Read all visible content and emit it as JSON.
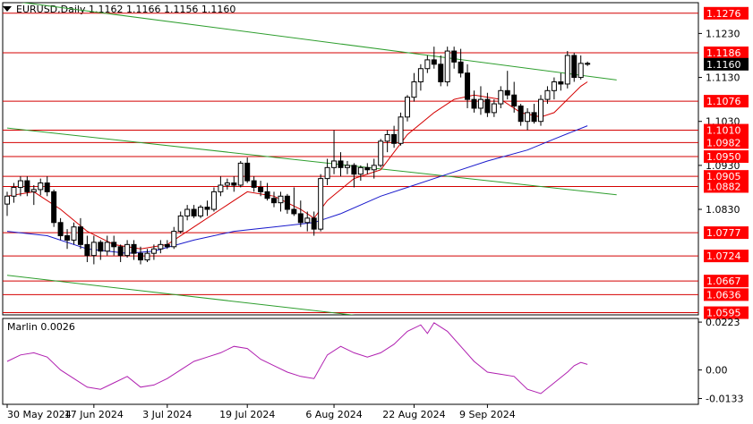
{
  "header": {
    "symbol_line": "EURUSD,Daily  1.1162 1.1166 1.1156 1.1160"
  },
  "indicator": {
    "label": "Marlin 0.0026"
  },
  "colors": {
    "bg": "#ffffff",
    "resistance": "#d40000",
    "trend": "#2e9e2e",
    "ma_fast": "#d40000",
    "ma_slow": "#1a1acc",
    "candle": "#000000",
    "oscillator": "#b020b0",
    "price_tag_bg": "#ff0000",
    "current_tag_bg": "#000000"
  },
  "chart_data": {
    "type": "candlestick",
    "symbol": "EURUSD",
    "timeframe": "Daily",
    "ohlc_last": {
      "open": 1.1162,
      "high": 1.1166,
      "low": 1.1156,
      "close": 1.116
    },
    "ylim": [
      1.059,
      1.13
    ],
    "y_ticks": [
      1.123,
      1.113,
      1.103,
      1.093,
      1.083
    ],
    "x_tick_labels": [
      "30 May 2024",
      "17 Jun 2024",
      "3 Jul 2024",
      "19 Jul 2024",
      "6 Aug 2024",
      "22 Aug 2024",
      "9 Sep 2024"
    ],
    "x_tick_index": [
      0,
      13,
      24,
      36,
      49,
      61,
      72
    ],
    "levels": [
      1.1276,
      1.1186,
      1.1076,
      1.101,
      1.0982,
      1.095,
      1.0905,
      1.0882,
      1.0777,
      1.0724,
      1.0667,
      1.0636,
      1.0595
    ],
    "current_price": 1.116,
    "trend_lines": [
      {
        "p1": [
          0,
          1.1305
        ],
        "p2": [
          86,
          1.1135
        ]
      },
      {
        "p1": [
          0,
          1.1015
        ],
        "p2": [
          86,
          1.0872
        ]
      },
      {
        "p1": [
          0,
          1.068
        ],
        "p2": [
          86,
          1.053
        ]
      }
    ],
    "candles": [
      [
        1.0842,
        1.087,
        1.0815,
        1.086
      ],
      [
        1.086,
        1.089,
        1.0845,
        1.088
      ],
      [
        1.088,
        1.0905,
        1.086,
        1.0895
      ],
      [
        1.0895,
        1.0905,
        1.086,
        1.087
      ],
      [
        1.087,
        1.0885,
        1.084,
        1.0875
      ],
      [
        1.0875,
        1.09,
        1.0862,
        1.089
      ],
      [
        1.089,
        1.0905,
        1.086,
        1.087
      ],
      [
        1.087,
        1.0875,
        1.079,
        1.08
      ],
      [
        1.08,
        1.081,
        1.076,
        1.077
      ],
      [
        1.077,
        1.0785,
        1.074,
        1.076
      ],
      [
        1.076,
        1.08,
        1.075,
        1.079
      ],
      [
        1.079,
        1.081,
        1.074,
        1.075
      ],
      [
        1.075,
        1.077,
        1.071,
        1.0725
      ],
      [
        1.0725,
        1.077,
        1.0705,
        1.0755
      ],
      [
        1.0755,
        1.076,
        1.0715,
        1.0735
      ],
      [
        1.0735,
        1.077,
        1.0725,
        1.0755
      ],
      [
        1.0755,
        1.077,
        1.0725,
        1.0745
      ],
      [
        1.0745,
        1.075,
        1.071,
        1.0725
      ],
      [
        1.0725,
        1.076,
        1.072,
        1.075
      ],
      [
        1.075,
        1.076,
        1.0715,
        1.073
      ],
      [
        1.073,
        1.0745,
        1.0705,
        1.0715
      ],
      [
        1.0715,
        1.074,
        1.071,
        1.073
      ],
      [
        1.073,
        1.075,
        1.0715,
        1.074
      ],
      [
        1.074,
        1.076,
        1.073,
        1.075
      ],
      [
        1.075,
        1.076,
        1.074,
        1.0745
      ],
      [
        1.0745,
        1.079,
        1.074,
        1.078
      ],
      [
        1.078,
        1.0825,
        1.0775,
        1.0815
      ],
      [
        1.0815,
        1.084,
        1.0805,
        1.083
      ],
      [
        1.083,
        1.084,
        1.081,
        1.0815
      ],
      [
        1.0815,
        1.084,
        1.081,
        1.0835
      ],
      [
        1.0835,
        1.085,
        1.0815,
        1.083
      ],
      [
        1.083,
        1.088,
        1.0825,
        1.087
      ],
      [
        1.087,
        1.0905,
        1.086,
        1.0885
      ],
      [
        1.0885,
        1.09,
        1.0875,
        1.089
      ],
      [
        1.089,
        1.0905,
        1.087,
        1.0885
      ],
      [
        1.0885,
        1.094,
        1.088,
        1.0935
      ],
      [
        1.0935,
        1.0948,
        1.089,
        1.0895
      ],
      [
        1.0895,
        1.0905,
        1.087,
        1.088
      ],
      [
        1.088,
        1.0895,
        1.086,
        1.087
      ],
      [
        1.087,
        1.089,
        1.085,
        1.0855
      ],
      [
        1.0855,
        1.087,
        1.0835,
        1.0845
      ],
      [
        1.0845,
        1.087,
        1.0825,
        1.086
      ],
      [
        1.086,
        1.0865,
        1.082,
        1.083
      ],
      [
        1.083,
        1.088,
        1.0815,
        1.082
      ],
      [
        1.082,
        1.085,
        1.079,
        1.08
      ],
      [
        1.08,
        1.0825,
        1.078,
        1.081
      ],
      [
        1.081,
        1.0825,
        1.077,
        1.0785
      ],
      [
        1.0785,
        1.091,
        1.078,
        1.09
      ],
      [
        1.09,
        1.0945,
        1.0885,
        1.0925
      ],
      [
        1.0925,
        1.101,
        1.091,
        1.094
      ],
      [
        1.094,
        1.096,
        1.0905,
        1.0925
      ],
      [
        1.0925,
        1.094,
        1.091,
        1.093
      ],
      [
        1.093,
        1.0935,
        1.088,
        1.091
      ],
      [
        1.091,
        1.093,
        1.0895,
        1.0925
      ],
      [
        1.0925,
        1.0935,
        1.091,
        1.092
      ],
      [
        1.092,
        1.0945,
        1.09,
        1.093
      ],
      [
        1.093,
        1.099,
        1.0925,
        1.0985
      ],
      [
        1.0985,
        1.101,
        1.096,
        1.1
      ],
      [
        1.1,
        1.102,
        1.097,
        1.098
      ],
      [
        1.098,
        1.105,
        1.0975,
        1.104
      ],
      [
        1.104,
        1.109,
        1.103,
        1.1085
      ],
      [
        1.1085,
        1.114,
        1.1075,
        1.112
      ],
      [
        1.112,
        1.116,
        1.11,
        1.115
      ],
      [
        1.115,
        1.118,
        1.114,
        1.117
      ],
      [
        1.117,
        1.12,
        1.115,
        1.116
      ],
      [
        1.116,
        1.118,
        1.111,
        1.112
      ],
      [
        1.112,
        1.12,
        1.111,
        1.119
      ],
      [
        1.119,
        1.12,
        1.115,
        1.1165
      ],
      [
        1.1165,
        1.1195,
        1.113,
        1.114
      ],
      [
        1.114,
        1.116,
        1.106,
        1.108
      ],
      [
        1.108,
        1.11,
        1.105,
        1.106
      ],
      [
        1.106,
        1.111,
        1.1045,
        1.108
      ],
      [
        1.108,
        1.1095,
        1.104,
        1.105
      ],
      [
        1.105,
        1.108,
        1.104,
        1.107
      ],
      [
        1.107,
        1.111,
        1.106,
        1.11
      ],
      [
        1.11,
        1.1145,
        1.108,
        1.109
      ],
      [
        1.109,
        1.112,
        1.105,
        1.1065
      ],
      [
        1.1065,
        1.107,
        1.102,
        1.103
      ],
      [
        1.103,
        1.106,
        1.101,
        1.105
      ],
      [
        1.105,
        1.107,
        1.1025,
        1.103
      ],
      [
        1.103,
        1.109,
        1.102,
        1.108
      ],
      [
        1.108,
        1.111,
        1.107,
        1.11
      ],
      [
        1.11,
        1.113,
        1.108,
        1.112
      ],
      [
        1.112,
        1.114,
        1.11,
        1.1115
      ],
      [
        1.1115,
        1.119,
        1.1105,
        1.118
      ],
      [
        1.118,
        1.1186,
        1.112,
        1.113
      ],
      [
        1.113,
        1.118,
        1.1125,
        1.1162
      ],
      [
        1.1162,
        1.1166,
        1.1156,
        1.116
      ]
    ],
    "ma_fast": [
      [
        0,
        1.086
      ],
      [
        4,
        1.087
      ],
      [
        8,
        1.083
      ],
      [
        12,
        1.078
      ],
      [
        16,
        1.075
      ],
      [
        20,
        1.074
      ],
      [
        24,
        1.075
      ],
      [
        28,
        1.079
      ],
      [
        32,
        1.083
      ],
      [
        34,
        1.085
      ],
      [
        36,
        1.087
      ],
      [
        40,
        1.086
      ],
      [
        44,
        1.083
      ],
      [
        46,
        1.081
      ],
      [
        48,
        1.085
      ],
      [
        52,
        1.09
      ],
      [
        56,
        1.092
      ],
      [
        60,
        1.1
      ],
      [
        64,
        1.105
      ],
      [
        67,
        1.108
      ],
      [
        70,
        1.109
      ],
      [
        74,
        1.108
      ],
      [
        77,
        1.105
      ],
      [
        80,
        1.104
      ],
      [
        82,
        1.105
      ],
      [
        86,
        1.111
      ],
      [
        87,
        1.112
      ]
    ],
    "ma_slow": [
      [
        0,
        1.078
      ],
      [
        6,
        1.077
      ],
      [
        12,
        1.074
      ],
      [
        18,
        1.073
      ],
      [
        22,
        1.0735
      ],
      [
        28,
        1.076
      ],
      [
        34,
        1.078
      ],
      [
        40,
        1.079
      ],
      [
        46,
        1.08
      ],
      [
        50,
        1.082
      ],
      [
        56,
        1.086
      ],
      [
        60,
        1.088
      ],
      [
        66,
        1.091
      ],
      [
        72,
        1.094
      ],
      [
        78,
        1.0965
      ],
      [
        82,
        1.099
      ],
      [
        87,
        1.102
      ]
    ],
    "oscillator": {
      "name": "Marlin",
      "value": 0.0026,
      "ylim": [
        -0.016,
        0.024
      ],
      "y_ticks": [
        0.0223,
        0.0,
        -0.0133
      ],
      "series": [
        [
          0,
          0.004
        ],
        [
          2,
          0.007
        ],
        [
          4,
          0.008
        ],
        [
          6,
          0.006
        ],
        [
          8,
          0.0
        ],
        [
          10,
          -0.004
        ],
        [
          12,
          -0.008
        ],
        [
          14,
          -0.009
        ],
        [
          16,
          -0.006
        ],
        [
          18,
          -0.003
        ],
        [
          20,
          -0.008
        ],
        [
          22,
          -0.007
        ],
        [
          24,
          -0.004
        ],
        [
          26,
          0.0
        ],
        [
          28,
          0.004
        ],
        [
          30,
          0.006
        ],
        [
          32,
          0.008
        ],
        [
          34,
          0.011
        ],
        [
          36,
          0.01
        ],
        [
          38,
          0.005
        ],
        [
          40,
          0.002
        ],
        [
          42,
          -0.001
        ],
        [
          44,
          -0.003
        ],
        [
          46,
          -0.004
        ],
        [
          48,
          0.007
        ],
        [
          50,
          0.011
        ],
        [
          52,
          0.008
        ],
        [
          54,
          0.006
        ],
        [
          56,
          0.008
        ],
        [
          58,
          0.012
        ],
        [
          60,
          0.018
        ],
        [
          62,
          0.021
        ],
        [
          63,
          0.017
        ],
        [
          64,
          0.022
        ],
        [
          66,
          0.018
        ],
        [
          68,
          0.011
        ],
        [
          70,
          0.004
        ],
        [
          72,
          -0.001
        ],
        [
          74,
          -0.002
        ],
        [
          76,
          -0.003
        ],
        [
          78,
          -0.009
        ],
        [
          80,
          -0.011
        ],
        [
          82,
          -0.006
        ],
        [
          84,
          -0.001
        ],
        [
          85,
          0.002
        ],
        [
          86,
          0.0035
        ],
        [
          87,
          0.0026
        ]
      ]
    }
  }
}
